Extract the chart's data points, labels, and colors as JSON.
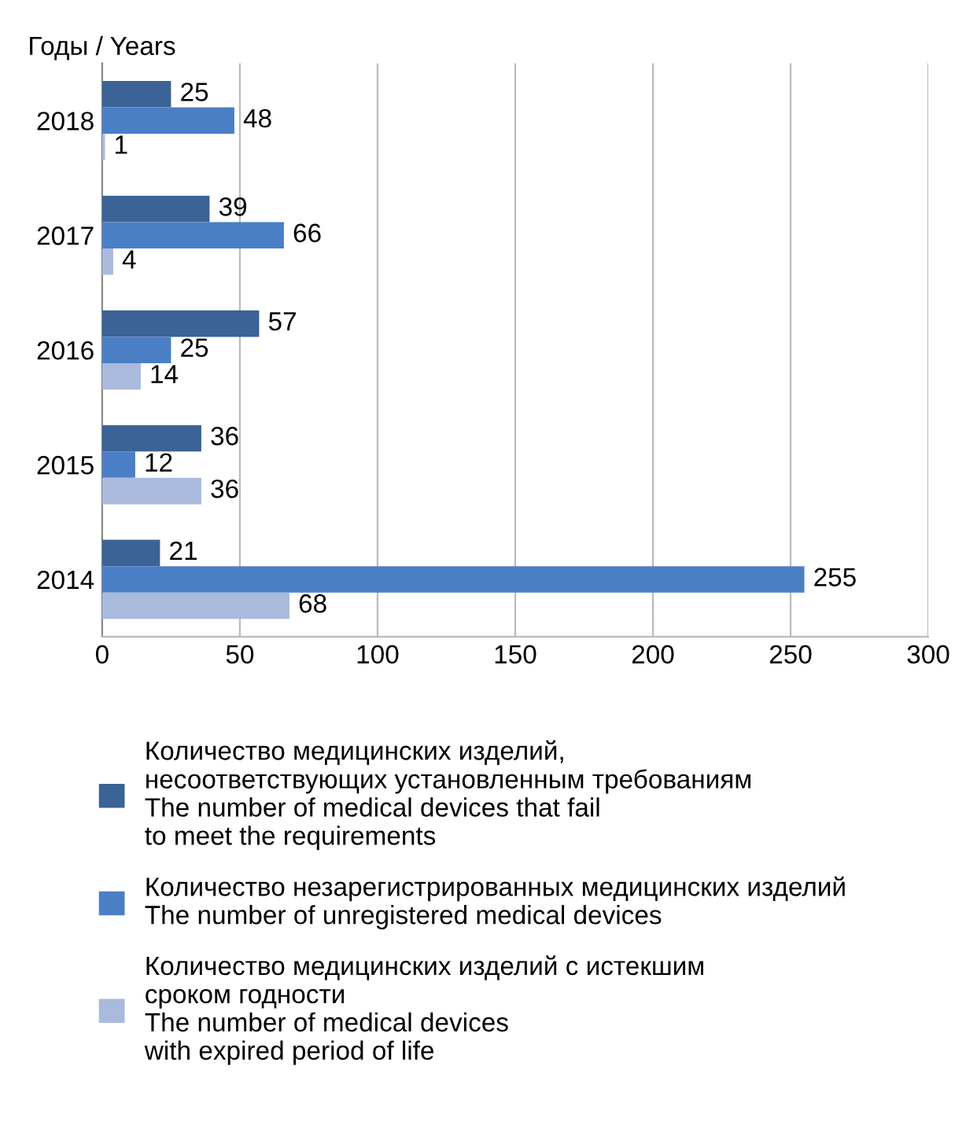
{
  "chart_data": {
    "type": "bar",
    "orientation": "horizontal",
    "ylabel": "Годы / Years",
    "categories": [
      "2018",
      "2017",
      "2016",
      "2015",
      "2014"
    ],
    "series": [
      {
        "name": "Количество медицинских изделий,\nнесоответствующих установленным требованиям\nThe number of medical devices that fail\nto meet the requirements",
        "color": "#3b6395",
        "values": [
          25,
          39,
          57,
          36,
          21
        ]
      },
      {
        "name": "Количество незарегистрированных медицинских изделий\nThe number of unregistered medical devices",
        "color": "#4a7fc5",
        "values": [
          48,
          66,
          25,
          12,
          255
        ]
      },
      {
        "name": "Количество медицинских изделий с истекшим\nсроком годности\nThe number of medical devices\nwith expired period of life",
        "color": "#a9badc",
        "values": [
          1,
          4,
          14,
          36,
          68
        ]
      }
    ],
    "xlim": [
      0,
      300
    ],
    "xticks": [
      0,
      50,
      100,
      150,
      200,
      250,
      300
    ],
    "grid": "x",
    "legend": "bottom",
    "data_labels": true
  }
}
